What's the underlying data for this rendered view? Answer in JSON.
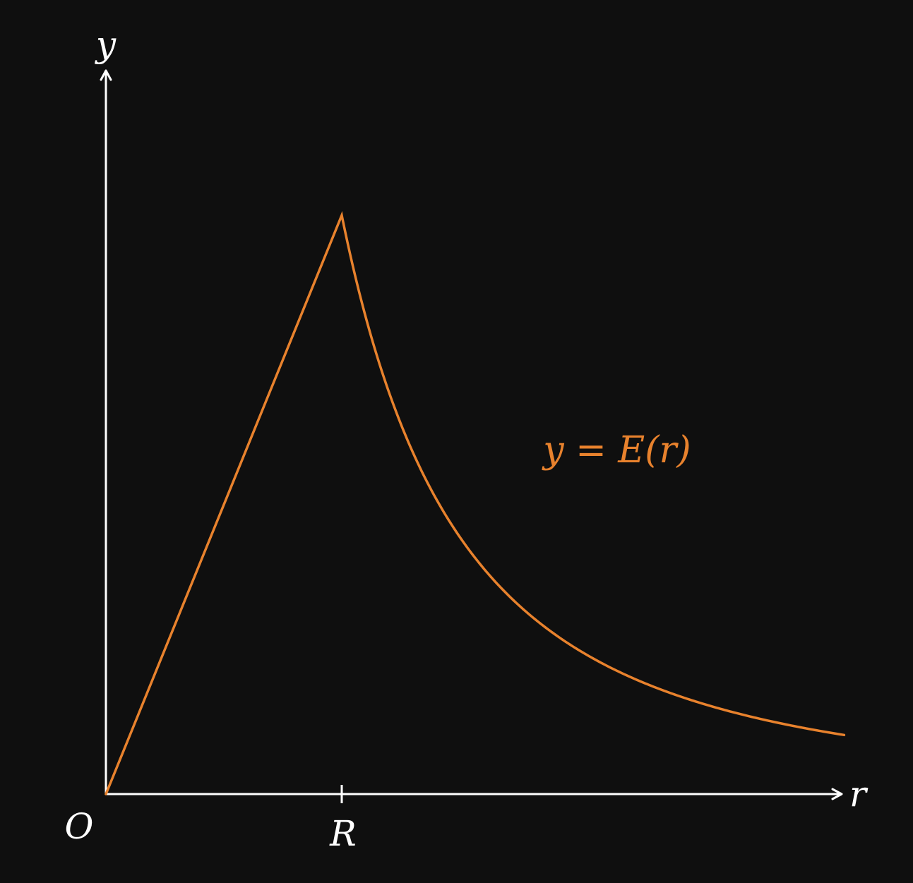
{
  "colors": {
    "background": "#0f0f0f",
    "axis": "#ffffff",
    "curve": "#e8822d"
  },
  "labels": {
    "origin": "O",
    "x_axis": "r",
    "y_axis": "y",
    "tick_R": "R",
    "curve_label": "y = E(r)"
  },
  "chart_data": {
    "type": "line",
    "title": "",
    "xlabel": "r",
    "ylabel": "y",
    "xlim": [
      0,
      3.13
    ],
    "ylim": [
      0,
      1.3
    ],
    "x_ticks": [
      {
        "value": 1,
        "label": "R"
      }
    ],
    "origin_label": "O",
    "grid": false,
    "series": [
      {
        "name": "y = E(r)",
        "pieces": [
          {
            "domain": [
              0,
              1
            ],
            "form": "linear"
          },
          {
            "domain": [
              1,
              3.13
            ],
            "form": "inverse-square"
          }
        ],
        "peak": {
          "x": 1,
          "y": 1
        },
        "x": [
          0,
          0.25,
          0.5,
          0.75,
          1,
          1.25,
          1.5,
          1.75,
          2,
          2.25,
          2.5,
          2.75,
          3,
          3.13
        ],
        "y": [
          0,
          0.25,
          0.5,
          0.75,
          1,
          0.64,
          0.444,
          0.327,
          0.25,
          0.198,
          0.16,
          0.132,
          0.111,
          0.102
        ]
      }
    ]
  }
}
